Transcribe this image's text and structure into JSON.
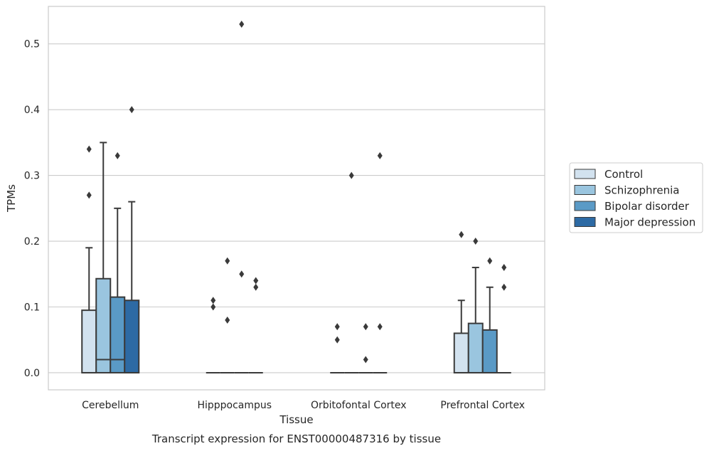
{
  "chart_data": {
    "type": "boxplot",
    "caption": "Transcript expression for ENST00000487316 by tissue",
    "xlabel": "Tissue",
    "ylabel": "TPMs",
    "ylim": [
      -0.026,
      0.557
    ],
    "yticks": [
      0.0,
      0.1,
      0.2,
      0.3,
      0.4,
      0.5
    ],
    "ytick_labels": [
      "0.0",
      "0.1",
      "0.2",
      "0.3",
      "0.4",
      "0.5"
    ],
    "grid": "horizontal",
    "legend_position": "right",
    "categories": [
      "Cerebellum",
      "Hipppocampus",
      "Orbitofontal Cortex",
      "Prefrontal Cortex"
    ],
    "series": [
      {
        "name": "Control",
        "color": "#d2e2ef",
        "boxes": [
          {
            "q1": 0.0,
            "median": 0.0,
            "q3": 0.095,
            "whisker_low": 0.0,
            "whisker_high": 0.19,
            "outliers": [
              0.27,
              0.34
            ]
          },
          {
            "q1": 0.0,
            "median": 0.0,
            "q3": 0.0,
            "whisker_low": 0.0,
            "whisker_high": 0.0,
            "outliers": [
              0.1,
              0.11
            ]
          },
          {
            "q1": 0.0,
            "median": 0.0,
            "q3": 0.0,
            "whisker_low": 0.0,
            "whisker_high": 0.0,
            "outliers": [
              0.05,
              0.07
            ]
          },
          {
            "q1": 0.0,
            "median": 0.0,
            "q3": 0.06,
            "whisker_low": 0.0,
            "whisker_high": 0.11,
            "outliers": [
              0.21
            ]
          }
        ]
      },
      {
        "name": "Schizophrenia",
        "color": "#9ac5df",
        "boxes": [
          {
            "q1": 0.0,
            "median": 0.02,
            "q3": 0.143,
            "whisker_low": 0.0,
            "whisker_high": 0.35,
            "outliers": []
          },
          {
            "q1": 0.0,
            "median": 0.0,
            "q3": 0.0,
            "whisker_low": 0.0,
            "whisker_high": 0.0,
            "outliers": [
              0.08,
              0.17
            ]
          },
          {
            "q1": 0.0,
            "median": 0.0,
            "q3": 0.0,
            "whisker_low": 0.0,
            "whisker_high": 0.0,
            "outliers": [
              0.3
            ]
          },
          {
            "q1": 0.0,
            "median": 0.0,
            "q3": 0.075,
            "whisker_low": 0.0,
            "whisker_high": 0.16,
            "outliers": [
              0.2
            ]
          }
        ]
      },
      {
        "name": "Bipolar disorder",
        "color": "#5a9ac6",
        "boxes": [
          {
            "q1": 0.0,
            "median": 0.02,
            "q3": 0.115,
            "whisker_low": 0.0,
            "whisker_high": 0.25,
            "outliers": [
              0.33
            ]
          },
          {
            "q1": 0.0,
            "median": 0.0,
            "q3": 0.0,
            "whisker_low": 0.0,
            "whisker_high": 0.0,
            "outliers": [
              0.15,
              0.53
            ]
          },
          {
            "q1": 0.0,
            "median": 0.0,
            "q3": 0.0,
            "whisker_low": 0.0,
            "whisker_high": 0.0,
            "outliers": [
              0.02,
              0.07
            ]
          },
          {
            "q1": 0.0,
            "median": 0.0,
            "q3": 0.065,
            "whisker_low": 0.0,
            "whisker_high": 0.13,
            "outliers": [
              0.17
            ]
          }
        ]
      },
      {
        "name": "Major depression",
        "color": "#2d6aa4",
        "boxes": [
          {
            "q1": 0.0,
            "median": 0.0,
            "q3": 0.11,
            "whisker_low": 0.0,
            "whisker_high": 0.26,
            "outliers": [
              0.4
            ]
          },
          {
            "q1": 0.0,
            "median": 0.0,
            "q3": 0.0,
            "whisker_low": 0.0,
            "whisker_high": 0.0,
            "outliers": [
              0.13,
              0.14
            ]
          },
          {
            "q1": 0.0,
            "median": 0.0,
            "q3": 0.0,
            "whisker_low": 0.0,
            "whisker_high": 0.0,
            "outliers": [
              0.07,
              0.33
            ]
          },
          {
            "q1": 0.0,
            "median": 0.0,
            "q3": 0.0,
            "whisker_low": 0.0,
            "whisker_high": 0.0,
            "outliers": [
              0.13,
              0.16
            ]
          }
        ]
      }
    ]
  }
}
